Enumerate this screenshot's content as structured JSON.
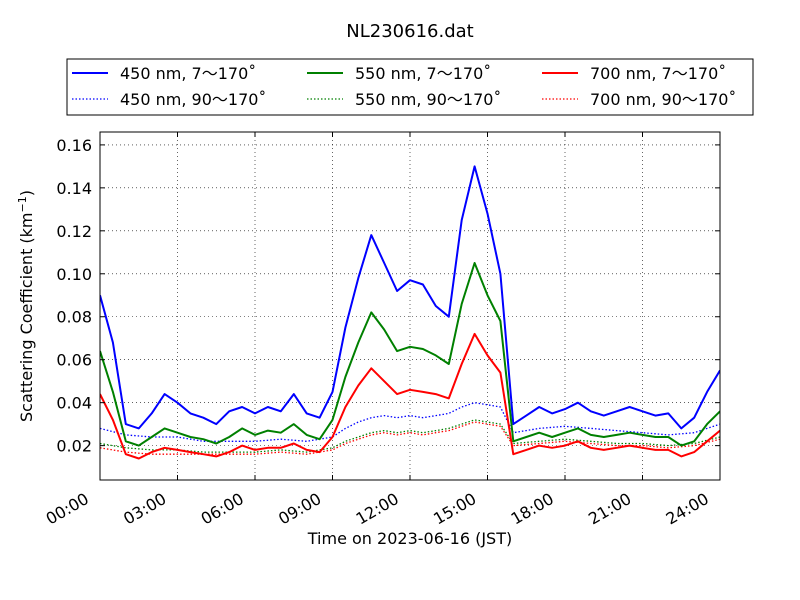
{
  "chart_data": {
    "type": "line",
    "title": "NL230616.dat",
    "xlabel": "Time on 2023-06-16 (JST)",
    "ylabel": "Scattering Coefficient (km",
    "ylabel_exp": "−1",
    "ylabel_close": ")",
    "xlim": [
      0,
      24
    ],
    "ylim": [
      0.004,
      0.166
    ],
    "x_ticks": [
      0,
      3,
      6,
      9,
      12,
      15,
      18,
      21,
      24
    ],
    "x_tick_labels": [
      "00:00",
      "03:00",
      "06:00",
      "09:00",
      "12:00",
      "15:00",
      "18:00",
      "21:00",
      "24:00"
    ],
    "y_ticks": [
      0.02,
      0.04,
      0.06,
      0.08,
      0.1,
      0.12,
      0.14,
      0.16
    ],
    "y_tick_labels": [
      "0.02",
      "0.04",
      "0.06",
      "0.08",
      "0.10",
      "0.12",
      "0.14",
      "0.16"
    ],
    "grid": true,
    "legend_position": "top",
    "series": [
      {
        "name": "450 nm, 7～170˚",
        "color": "#0000ff",
        "style": "solid",
        "x": [
          0.0,
          0.5,
          1.0,
          1.5,
          2.0,
          2.5,
          3.0,
          3.5,
          4.0,
          4.5,
          5.0,
          5.5,
          6.0,
          6.5,
          7.0,
          7.5,
          8.0,
          8.5,
          9.0,
          9.5,
          10.0,
          10.5,
          11.0,
          11.5,
          12.0,
          12.5,
          13.0,
          13.5,
          14.0,
          14.5,
          15.0,
          15.5,
          16.0,
          16.5,
          17.0,
          17.5,
          18.0,
          18.5,
          19.0,
          19.5,
          20.0,
          20.5,
          21.0,
          21.5,
          22.0,
          22.5,
          23.0,
          23.5,
          24.0
        ],
        "values": [
          0.09,
          0.068,
          0.03,
          0.028,
          0.035,
          0.044,
          0.04,
          0.035,
          0.033,
          0.03,
          0.036,
          0.038,
          0.035,
          0.038,
          0.036,
          0.044,
          0.035,
          0.033,
          0.045,
          0.075,
          0.098,
          0.118,
          0.105,
          0.092,
          0.097,
          0.095,
          0.085,
          0.08,
          0.125,
          0.15,
          0.128,
          0.1,
          0.03,
          0.034,
          0.038,
          0.035,
          0.037,
          0.04,
          0.036,
          0.034,
          0.036,
          0.038,
          0.036,
          0.034,
          0.035,
          0.028,
          0.033,
          0.045,
          0.055
        ]
      },
      {
        "name": "450 nm, 90～170˚",
        "color": "#0000ff",
        "style": "dotted",
        "x": [
          0.0,
          1.0,
          2.0,
          3.0,
          4.0,
          5.0,
          6.0,
          7.0,
          8.0,
          9.0,
          9.5,
          10.0,
          10.5,
          11.0,
          11.5,
          12.0,
          12.5,
          13.0,
          13.5,
          14.0,
          14.5,
          15.0,
          15.5,
          16.0,
          17.0,
          18.0,
          19.0,
          20.0,
          21.0,
          22.0,
          23.0,
          24.0
        ],
        "values": [
          0.028,
          0.025,
          0.024,
          0.024,
          0.022,
          0.022,
          0.022,
          0.023,
          0.022,
          0.024,
          0.028,
          0.031,
          0.033,
          0.034,
          0.033,
          0.034,
          0.033,
          0.034,
          0.035,
          0.038,
          0.04,
          0.039,
          0.038,
          0.026,
          0.028,
          0.029,
          0.028,
          0.027,
          0.026,
          0.025,
          0.026,
          0.03
        ]
      },
      {
        "name": "550 nm, 7～170˚",
        "color": "#008000",
        "style": "solid",
        "x": [
          0.0,
          0.5,
          1.0,
          1.5,
          2.0,
          2.5,
          3.0,
          3.5,
          4.0,
          4.5,
          5.0,
          5.5,
          6.0,
          6.5,
          7.0,
          7.5,
          8.0,
          8.5,
          9.0,
          9.5,
          10.0,
          10.5,
          11.0,
          11.5,
          12.0,
          12.5,
          13.0,
          13.5,
          14.0,
          14.5,
          15.0,
          15.5,
          16.0,
          16.5,
          17.0,
          17.5,
          18.0,
          18.5,
          19.0,
          19.5,
          20.0,
          20.5,
          21.0,
          21.5,
          22.0,
          22.5,
          23.0,
          23.5,
          24.0
        ],
        "values": [
          0.064,
          0.045,
          0.022,
          0.02,
          0.024,
          0.028,
          0.026,
          0.024,
          0.023,
          0.021,
          0.024,
          0.028,
          0.025,
          0.027,
          0.026,
          0.03,
          0.025,
          0.023,
          0.032,
          0.052,
          0.068,
          0.082,
          0.074,
          0.064,
          0.066,
          0.065,
          0.062,
          0.058,
          0.086,
          0.105,
          0.09,
          0.078,
          0.022,
          0.024,
          0.026,
          0.024,
          0.026,
          0.028,
          0.025,
          0.024,
          0.025,
          0.026,
          0.025,
          0.024,
          0.024,
          0.02,
          0.022,
          0.03,
          0.036
        ]
      },
      {
        "name": "550 nm, 90～170˚",
        "color": "#008000",
        "style": "dotted",
        "x": [
          0.0,
          1.0,
          2.0,
          3.0,
          4.0,
          5.0,
          6.0,
          7.0,
          8.0,
          9.0,
          9.5,
          10.0,
          10.5,
          11.0,
          11.5,
          12.0,
          12.5,
          13.0,
          13.5,
          14.0,
          14.5,
          15.0,
          15.5,
          16.0,
          17.0,
          18.0,
          19.0,
          20.0,
          21.0,
          22.0,
          23.0,
          24.0
        ],
        "values": [
          0.021,
          0.019,
          0.018,
          0.018,
          0.017,
          0.017,
          0.017,
          0.018,
          0.017,
          0.019,
          0.022,
          0.024,
          0.026,
          0.027,
          0.026,
          0.027,
          0.026,
          0.027,
          0.028,
          0.03,
          0.032,
          0.031,
          0.03,
          0.021,
          0.022,
          0.023,
          0.022,
          0.021,
          0.021,
          0.02,
          0.021,
          0.024
        ]
      },
      {
        "name": "700 nm, 7～170˚",
        "color": "#ff0000",
        "style": "solid",
        "x": [
          0.0,
          0.5,
          1.0,
          1.5,
          2.0,
          2.5,
          3.0,
          3.5,
          4.0,
          4.5,
          5.0,
          5.5,
          6.0,
          6.5,
          7.0,
          7.5,
          8.0,
          8.5,
          9.0,
          9.5,
          10.0,
          10.5,
          11.0,
          11.5,
          12.0,
          12.5,
          13.0,
          13.5,
          14.0,
          14.5,
          15.0,
          15.5,
          16.0,
          16.5,
          17.0,
          17.5,
          18.0,
          18.5,
          19.0,
          19.5,
          20.0,
          20.5,
          21.0,
          21.5,
          22.0,
          22.5,
          23.0,
          23.5,
          24.0
        ],
        "values": [
          0.044,
          0.032,
          0.016,
          0.014,
          0.017,
          0.019,
          0.018,
          0.017,
          0.016,
          0.015,
          0.017,
          0.02,
          0.018,
          0.019,
          0.019,
          0.021,
          0.018,
          0.017,
          0.024,
          0.038,
          0.048,
          0.056,
          0.05,
          0.044,
          0.046,
          0.045,
          0.044,
          0.042,
          0.058,
          0.072,
          0.062,
          0.054,
          0.016,
          0.018,
          0.02,
          0.019,
          0.02,
          0.022,
          0.019,
          0.018,
          0.019,
          0.02,
          0.019,
          0.018,
          0.018,
          0.015,
          0.017,
          0.022,
          0.027
        ]
      },
      {
        "name": "700 nm, 90～170˚",
        "color": "#ff0000",
        "style": "dotted",
        "x": [
          0.0,
          1.0,
          2.0,
          3.0,
          4.0,
          5.0,
          6.0,
          7.0,
          8.0,
          9.0,
          9.5,
          10.0,
          10.5,
          11.0,
          11.5,
          12.0,
          12.5,
          13.0,
          13.5,
          14.0,
          14.5,
          15.0,
          15.5,
          16.0,
          17.0,
          18.0,
          19.0,
          20.0,
          21.0,
          22.0,
          23.0,
          24.0
        ],
        "values": [
          0.019,
          0.017,
          0.016,
          0.016,
          0.016,
          0.016,
          0.016,
          0.017,
          0.016,
          0.018,
          0.021,
          0.023,
          0.025,
          0.026,
          0.025,
          0.026,
          0.025,
          0.026,
          0.027,
          0.029,
          0.031,
          0.03,
          0.029,
          0.02,
          0.021,
          0.022,
          0.021,
          0.02,
          0.02,
          0.019,
          0.02,
          0.023
        ]
      }
    ]
  }
}
